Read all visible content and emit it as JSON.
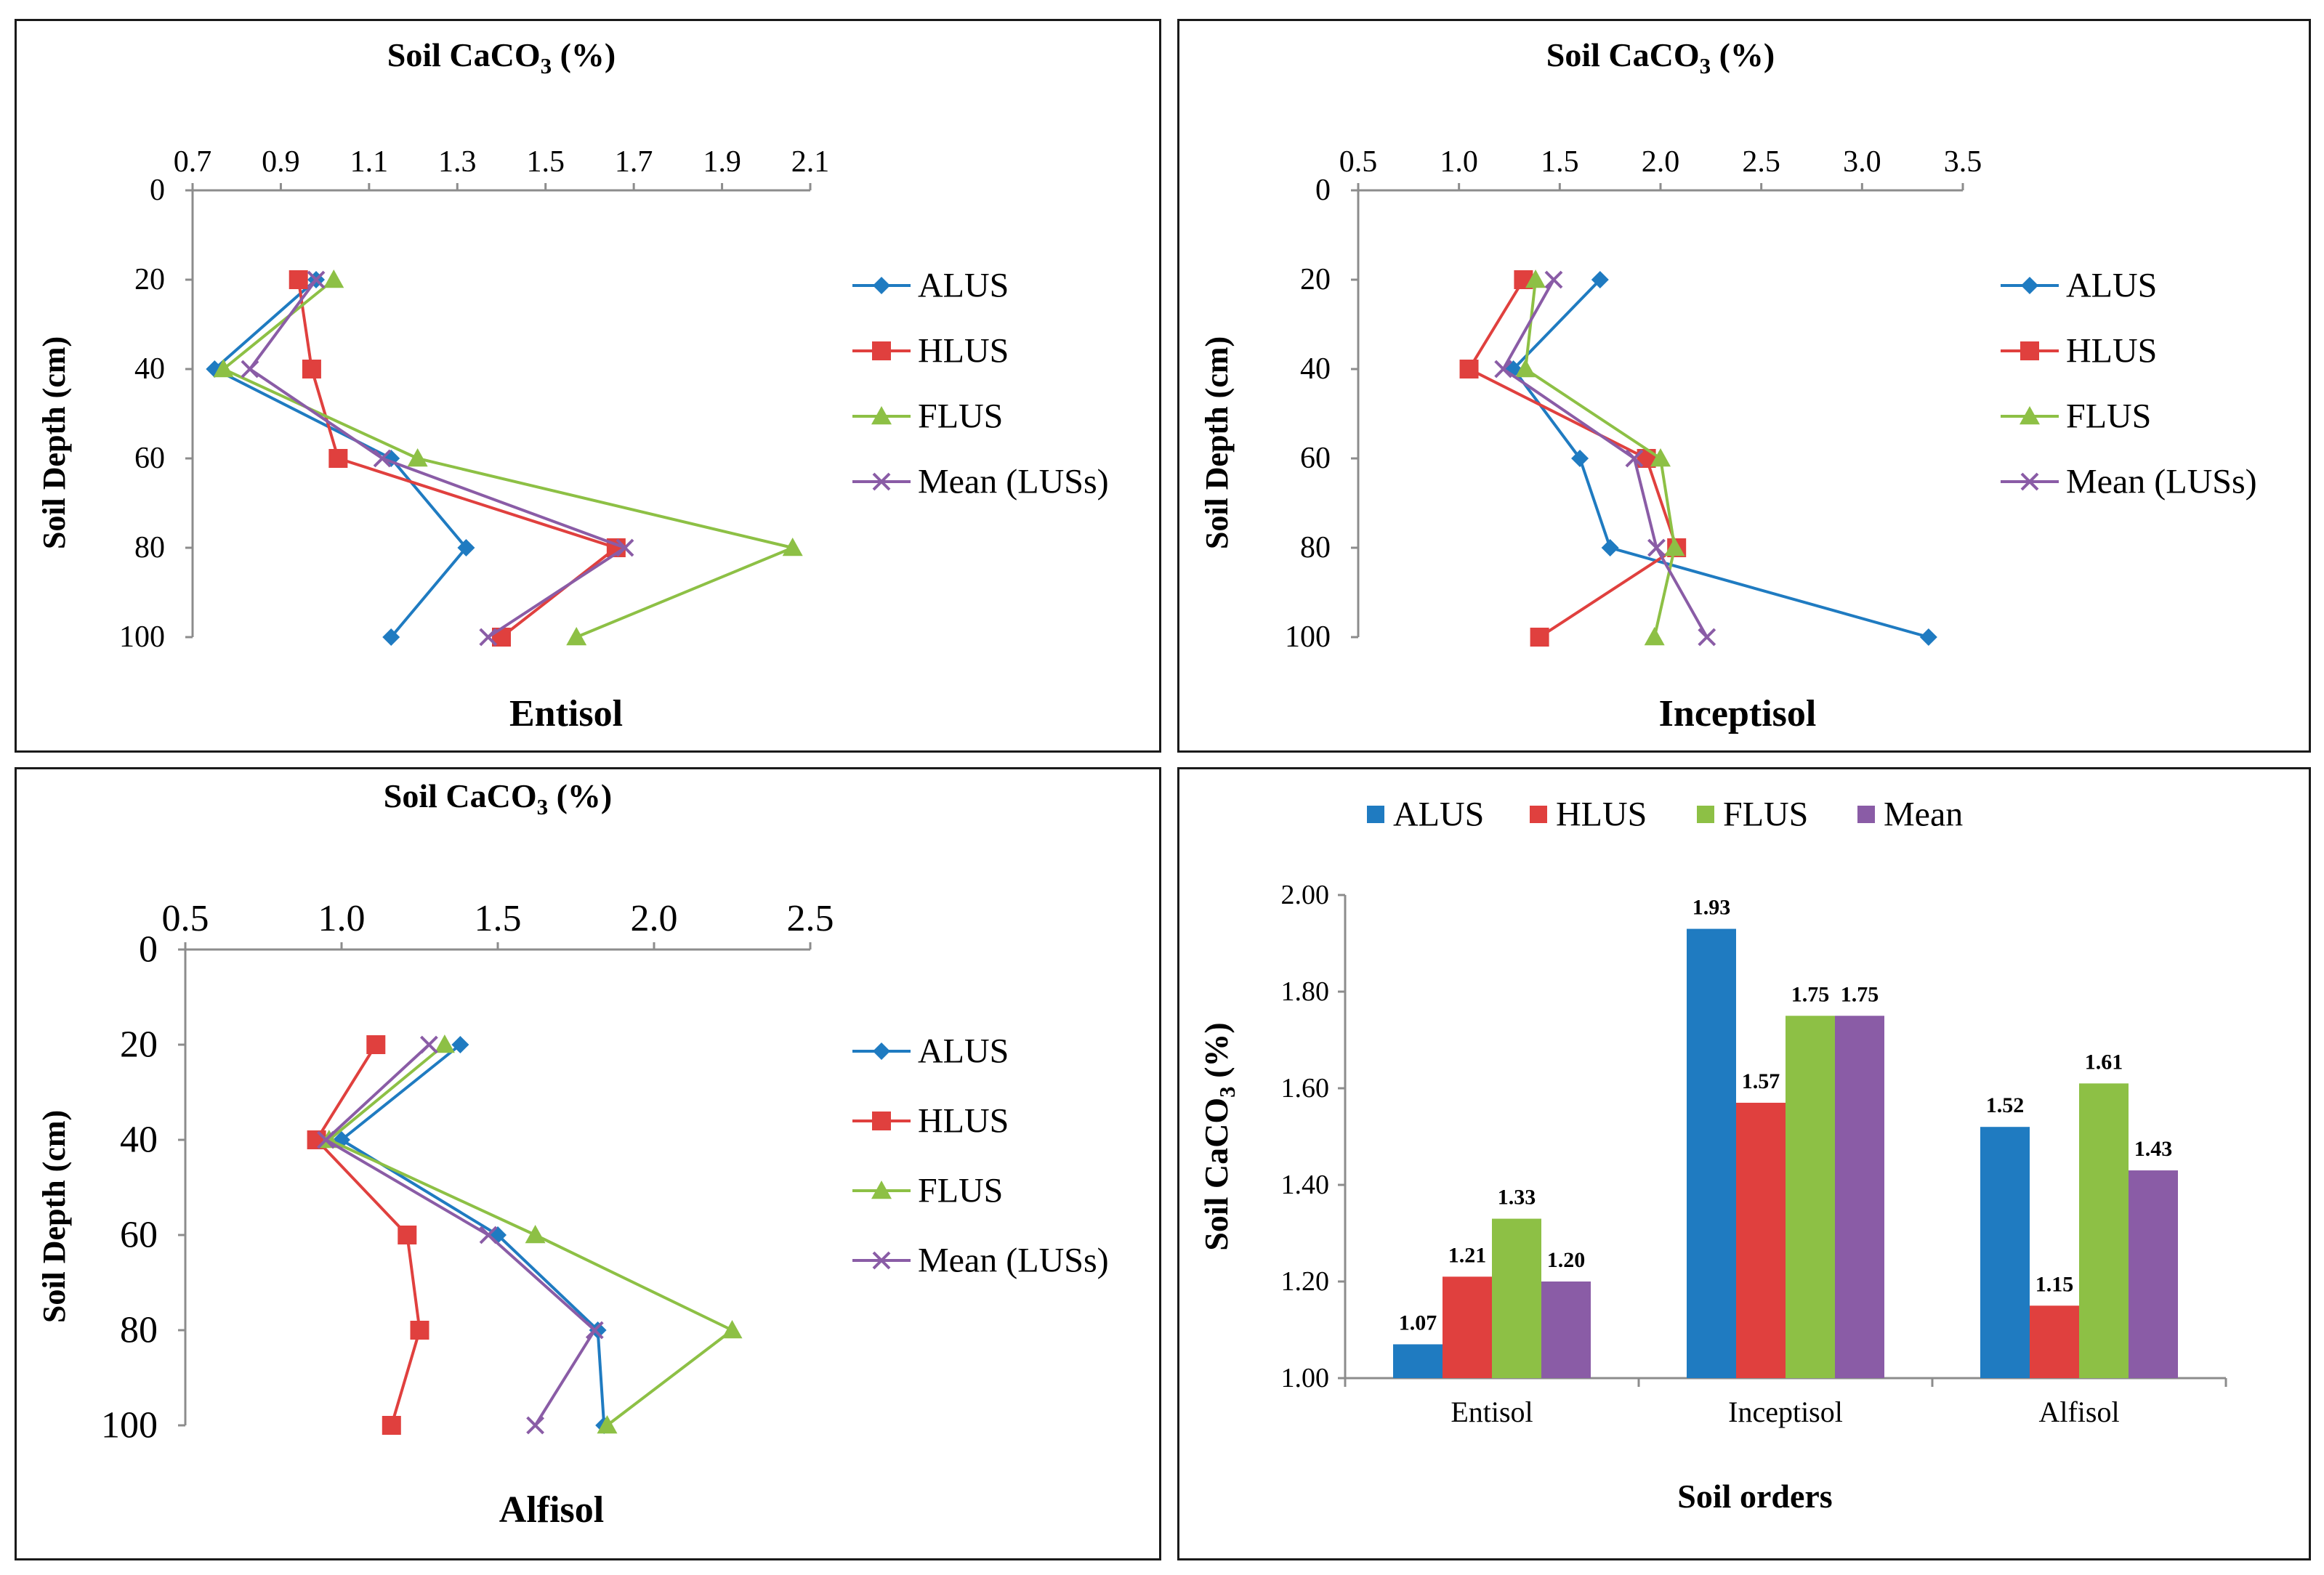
{
  "colors": {
    "ALUS": "#1f7bc1",
    "HLUS": "#e0403e",
    "FLUS": "#8dc045",
    "Mean": "#8a5ca6",
    "axis": "#8c8c8c"
  },
  "chart_data": [
    {
      "type": "line",
      "title": "Entisol",
      "axis_label": {
        "main": "Soil CaCO",
        "sub": "3",
        "tail": " (%)"
      },
      "xlabel": "Soil CaCO3 (%)",
      "ylabel": "Soil Depth (cm)",
      "xlim": [
        0.7,
        2.1
      ],
      "xticks": [
        0.7,
        0.9,
        1.1,
        1.3,
        1.5,
        1.7,
        1.9,
        2.1
      ],
      "xtick_labels": [
        "0.7",
        "0.9",
        "1.1",
        "1.3",
        "1.5",
        "1.7",
        "1.9",
        "2.1"
      ],
      "ylim": [
        0,
        100
      ],
      "yticks": [
        0,
        20,
        40,
        60,
        80,
        100
      ],
      "ytick_labels": [
        "0",
        "20",
        "40",
        "60",
        "80",
        "100"
      ],
      "depths": [
        20,
        40,
        60,
        80,
        100
      ],
      "series": [
        {
          "key": "ALUS",
          "name": "ALUS",
          "marker": "diamond",
          "values": [
            0.98,
            0.75,
            1.15,
            1.32,
            1.15
          ]
        },
        {
          "key": "HLUS",
          "name": "HLUS",
          "marker": "square",
          "values": [
            0.94,
            0.97,
            1.03,
            1.66,
            1.4
          ]
        },
        {
          "key": "FLUS",
          "name": "FLUS",
          "marker": "triangle",
          "values": [
            1.02,
            0.77,
            1.21,
            2.06,
            1.57
          ]
        },
        {
          "key": "Mean",
          "name": "Mean (LUSs)",
          "marker": "x",
          "values": [
            0.98,
            0.83,
            1.13,
            1.68,
            1.37
          ]
        }
      ]
    },
    {
      "type": "line",
      "title": "Inceptisol",
      "axis_label": {
        "main": "Soil CaCO",
        "sub": "3",
        "tail": " (%)"
      },
      "xlabel": "Soil CaCO3 (%)",
      "ylabel": "Soil Depth (cm)",
      "xlim": [
        0.5,
        3.5
      ],
      "xticks": [
        0.5,
        1.0,
        1.5,
        2.0,
        2.5,
        3.0,
        3.5
      ],
      "xtick_labels": [
        "0.5",
        "1.0",
        "1.5",
        "2.0",
        "2.5",
        "3.0",
        "3.5"
      ],
      "ylim": [
        0,
        100
      ],
      "yticks": [
        0,
        20,
        40,
        60,
        80,
        100
      ],
      "ytick_labels": [
        "0",
        "20",
        "40",
        "60",
        "80",
        "100"
      ],
      "depths": [
        20,
        40,
        60,
        80,
        100
      ],
      "series": [
        {
          "key": "ALUS",
          "name": "ALUS",
          "marker": "diamond",
          "values": [
            1.7,
            1.27,
            1.6,
            1.75,
            3.33
          ]
        },
        {
          "key": "HLUS",
          "name": "HLUS",
          "marker": "square",
          "values": [
            1.32,
            1.05,
            1.93,
            2.08,
            1.4
          ]
        },
        {
          "key": "FLUS",
          "name": "FLUS",
          "marker": "triangle",
          "values": [
            1.38,
            1.33,
            2.0,
            2.07,
            1.97
          ]
        },
        {
          "key": "Mean",
          "name": "Mean (LUSs)",
          "marker": "x",
          "values": [
            1.47,
            1.22,
            1.87,
            1.98,
            2.23
          ]
        }
      ]
    },
    {
      "type": "line",
      "title": "Alfisol",
      "axis_label": {
        "main": "Soil CaCO",
        "sub": "3",
        "tail": " (%)"
      },
      "xlabel": "Soil CaCO3 (%)",
      "ylabel": "Soil Depth (cm)",
      "xlim": [
        0.5,
        2.5
      ],
      "xticks": [
        0.5,
        1.0,
        1.5,
        2.0,
        2.5
      ],
      "xtick_labels": [
        "0.5",
        "1.0",
        "1.5",
        "2.0",
        "2.5"
      ],
      "ylim": [
        0,
        100
      ],
      "yticks": [
        0,
        20,
        40,
        60,
        80,
        100
      ],
      "ytick_labels": [
        "0",
        "20",
        "40",
        "60",
        "80",
        "100"
      ],
      "depths": [
        20,
        40,
        60,
        80,
        100
      ],
      "series": [
        {
          "key": "ALUS",
          "name": "ALUS",
          "marker": "diamond",
          "values": [
            1.38,
            1.0,
            1.5,
            1.82,
            1.84
          ]
        },
        {
          "key": "HLUS",
          "name": "HLUS",
          "marker": "square",
          "values": [
            1.11,
            0.92,
            1.21,
            1.25,
            1.16
          ]
        },
        {
          "key": "FLUS",
          "name": "FLUS",
          "marker": "triangle",
          "values": [
            1.33,
            0.96,
            1.62,
            2.25,
            1.85
          ]
        },
        {
          "key": "Mean",
          "name": "Mean (LUSs)",
          "marker": "x",
          "values": [
            1.28,
            0.95,
            1.47,
            1.81,
            1.62
          ]
        }
      ]
    },
    {
      "type": "bar",
      "xlabel": "Soil orders",
      "axis_label": {
        "main": "Soil CaCO",
        "sub": "3",
        "tail": " (%)"
      },
      "ylabel": "Soil CaCO3 (%)",
      "categories": [
        "Entisol",
        "Inceptisol",
        "Alfisol"
      ],
      "ylim": [
        1.0,
        2.0
      ],
      "yticks": [
        1.0,
        1.2,
        1.4,
        1.6,
        1.8,
        2.0
      ],
      "ytick_labels": [
        "1.00",
        "1.20",
        "1.40",
        "1.60",
        "1.80",
        "2.00"
      ],
      "legend_position": "top",
      "series": [
        {
          "key": "ALUS",
          "name": "ALUS",
          "values": [
            1.07,
            1.93,
            1.52
          ],
          "labels": [
            "1.07",
            "1.93",
            "1.52"
          ]
        },
        {
          "key": "HLUS",
          "name": "HLUS",
          "values": [
            1.21,
            1.57,
            1.15
          ],
          "labels": [
            "1.21",
            "1.57",
            "1.15"
          ]
        },
        {
          "key": "FLUS",
          "name": "FLUS",
          "values": [
            1.33,
            1.75,
            1.61
          ],
          "labels": [
            "1.33",
            "1.75",
            "1.61"
          ]
        },
        {
          "key": "Mean",
          "name": "Mean",
          "values": [
            1.2,
            1.75,
            1.43
          ],
          "labels": [
            "1.20",
            "1.75",
            "1.43"
          ]
        }
      ]
    }
  ]
}
